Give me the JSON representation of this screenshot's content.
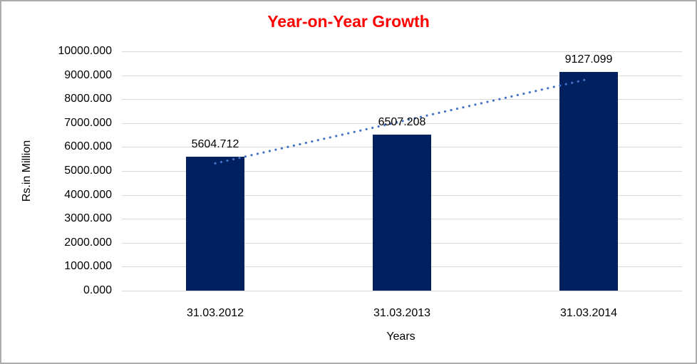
{
  "chart_data": {
    "type": "bar",
    "title": "Year-on-Year Growth",
    "title_color": "#FF0000",
    "categories": [
      "31.03.2012",
      "31.03.2013",
      "31.03.2014"
    ],
    "values": [
      5604.712,
      6507.208,
      9127.099
    ],
    "data_labels": [
      "5604.712",
      "6507.208",
      "9127.099"
    ],
    "xlabel": "Years",
    "ylabel": "Rs.in Million",
    "ylim": [
      0,
      10000
    ],
    "ytick_step": 1000,
    "ytick_labels": [
      "0.000",
      "1000.000",
      "2000.000",
      "3000.000",
      "4000.000",
      "5000.000",
      "6000.000",
      "7000.000",
      "8000.000",
      "9000.000",
      "10000.000"
    ],
    "bar_color": "#002060",
    "gridline_color": "#D9D9D9",
    "trendline": {
      "fit": "linear",
      "style": "dotted",
      "color": "#4472C4"
    },
    "legend": "none",
    "grid": "horizontal"
  }
}
